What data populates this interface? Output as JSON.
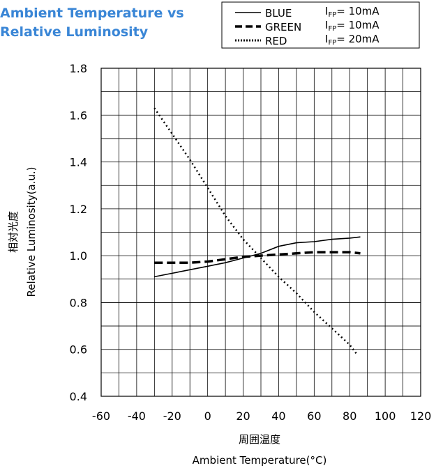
{
  "title_lines": [
    "Ambient Temperature vs",
    "Relative Luminosity"
  ],
  "legend": {
    "entries": [
      {
        "label": "BLUE",
        "condition_prefix": "I",
        "condition_sub": "FP",
        "condition_value": "= 10mA",
        "style": "solid"
      },
      {
        "label": "GREEN",
        "condition_prefix": "I",
        "condition_sub": "FP",
        "condition_value": "= 10mA",
        "style": "dashed"
      },
      {
        "label": "RED",
        "condition_prefix": "I",
        "condition_sub": "FP",
        "condition_value": "= 20mA",
        "style": "dotted"
      }
    ]
  },
  "chart_data": {
    "type": "line",
    "xlabel_jp": "周囲温度",
    "xlabel": "Ambient Temperature(°C)",
    "ylabel_jp": "相対光度",
    "ylabel": "Relative Luminosity(a.u.)",
    "xlim": [
      -60,
      120
    ],
    "ylim": [
      0.4,
      1.8
    ],
    "x_ticks": [
      "-60",
      "-40",
      "-20",
      "0",
      "20",
      "40",
      "60",
      "80",
      "100",
      "120"
    ],
    "x_tick_values": [
      -60,
      -40,
      -20,
      0,
      20,
      40,
      60,
      80,
      100,
      120
    ],
    "y_ticks": [
      "0.4",
      "0.6",
      "0.8",
      "1.0",
      "1.2",
      "1.4",
      "1.6",
      "1.8"
    ],
    "y_tick_values": [
      0.4,
      0.6,
      0.8,
      1.0,
      1.2,
      1.4,
      1.6,
      1.8
    ],
    "grid_x_step": 10,
    "grid_y_step": 0.1,
    "grid": true,
    "series": [
      {
        "name": "BLUE",
        "style": "solid",
        "x": [
          -30,
          -20,
          -10,
          0,
          10,
          20,
          30,
          40,
          50,
          60,
          70,
          80,
          86
        ],
        "y": [
          0.91,
          0.925,
          0.94,
          0.955,
          0.97,
          0.99,
          1.01,
          1.04,
          1.055,
          1.06,
          1.07,
          1.075,
          1.08
        ]
      },
      {
        "name": "GREEN",
        "style": "dashed",
        "x": [
          -30,
          -20,
          -10,
          0,
          10,
          20,
          30,
          40,
          50,
          60,
          70,
          80,
          86
        ],
        "y": [
          0.97,
          0.97,
          0.97,
          0.975,
          0.985,
          0.995,
          1.0,
          1.005,
          1.01,
          1.015,
          1.015,
          1.015,
          1.01
        ]
      },
      {
        "name": "RED",
        "style": "dotted",
        "x": [
          -30,
          -20,
          -10,
          0,
          10,
          20,
          30,
          40,
          50,
          60,
          70,
          80,
          84
        ],
        "y": [
          1.63,
          1.52,
          1.41,
          1.29,
          1.17,
          1.07,
          0.99,
          0.91,
          0.84,
          0.76,
          0.69,
          0.62,
          0.58
        ]
      }
    ]
  }
}
